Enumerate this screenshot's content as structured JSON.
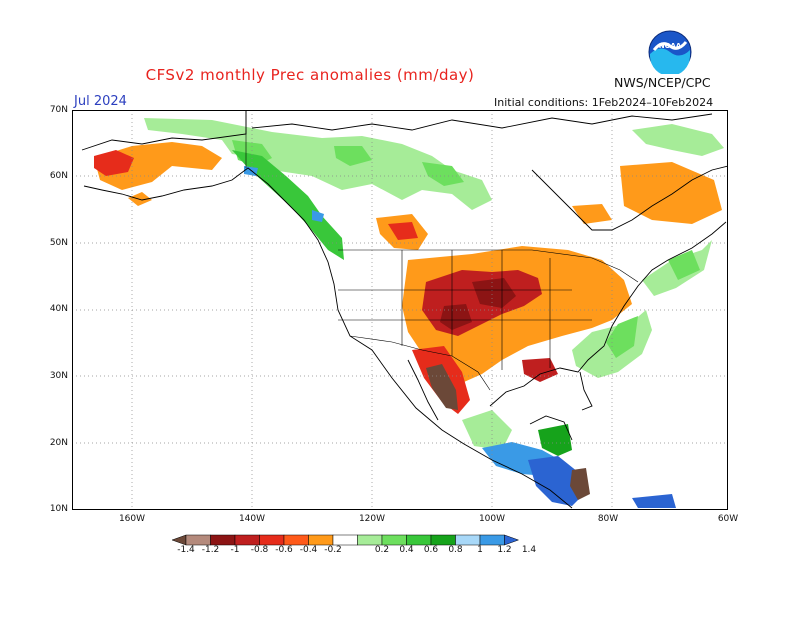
{
  "header": {
    "title": "CFSv2 monthly Prec anomalies (mm/day)",
    "month": "Jul 2024",
    "agency": "NWS/NCEP/CPC",
    "initial_conditions": "Initial conditions: 1Feb2024–10Feb2024",
    "logo_text": "NOAA"
  },
  "axes": {
    "y_labels": [
      "70N",
      "60N",
      "50N",
      "40N",
      "30N",
      "20N",
      "10N"
    ],
    "x_labels": [
      "160W",
      "140W",
      "120W",
      "100W",
      "80W",
      "60W"
    ]
  },
  "colorbar": {
    "labels": [
      "-1.4",
      "-1.2",
      "-1",
      "-0.8",
      "-0.6",
      "-0.4",
      "-0.2",
      "0.2",
      "0.4",
      "0.6",
      "0.8",
      "1",
      "1.2",
      "1.4"
    ],
    "colors": [
      "#6b4838",
      "#b48a7c",
      "#8c1414",
      "#bf1f1f",
      "#e62c1b",
      "#ff5a1a",
      "#ff9a1a",
      "#ffffff",
      "#a6ec98",
      "#6ddf5e",
      "#39c73a",
      "#16a31b",
      "#a8d8f8",
      "#3a9ae6",
      "#2b64d2"
    ]
  },
  "regions": [
    {
      "name": "alaska-dry",
      "color": "#ff9a1a"
    },
    {
      "name": "alaska-dry-core",
      "color": "#e62c1b"
    },
    {
      "name": "canada-north-wet",
      "color": "#a6ec98"
    },
    {
      "name": "canada-wet-patches",
      "color": "#6ddf5e"
    },
    {
      "name": "northwest-coast-wet",
      "color": "#39c73a"
    },
    {
      "name": "bc-wet-blue",
      "color": "#3a9ae6"
    },
    {
      "name": "pacific-nw-dry",
      "color": "#e62c1b"
    },
    {
      "name": "central-us-dry",
      "color": "#ff9a1a"
    },
    {
      "name": "plains-dry-core",
      "color": "#bf1f1f"
    },
    {
      "name": "southwest-dry-core",
      "color": "#8c1414"
    },
    {
      "name": "mexico-west-coast-dry",
      "color": "#6b4838"
    },
    {
      "name": "eastern-us-wet",
      "color": "#a6ec98"
    },
    {
      "name": "southeast-wet",
      "color": "#6ddf5e"
    },
    {
      "name": "louisiana-dry",
      "color": "#bf1f1f"
    },
    {
      "name": "quebec-dry",
      "color": "#ff9a1a"
    },
    {
      "name": "maritimes-wet",
      "color": "#6ddf5e"
    },
    {
      "name": "central-america-wet",
      "color": "#2b64d2"
    },
    {
      "name": "mexico-south-wet",
      "color": "#3a9ae6"
    },
    {
      "name": "yucatan-green",
      "color": "#16a31b"
    },
    {
      "name": "honduras-dry",
      "color": "#6b4838"
    }
  ]
}
